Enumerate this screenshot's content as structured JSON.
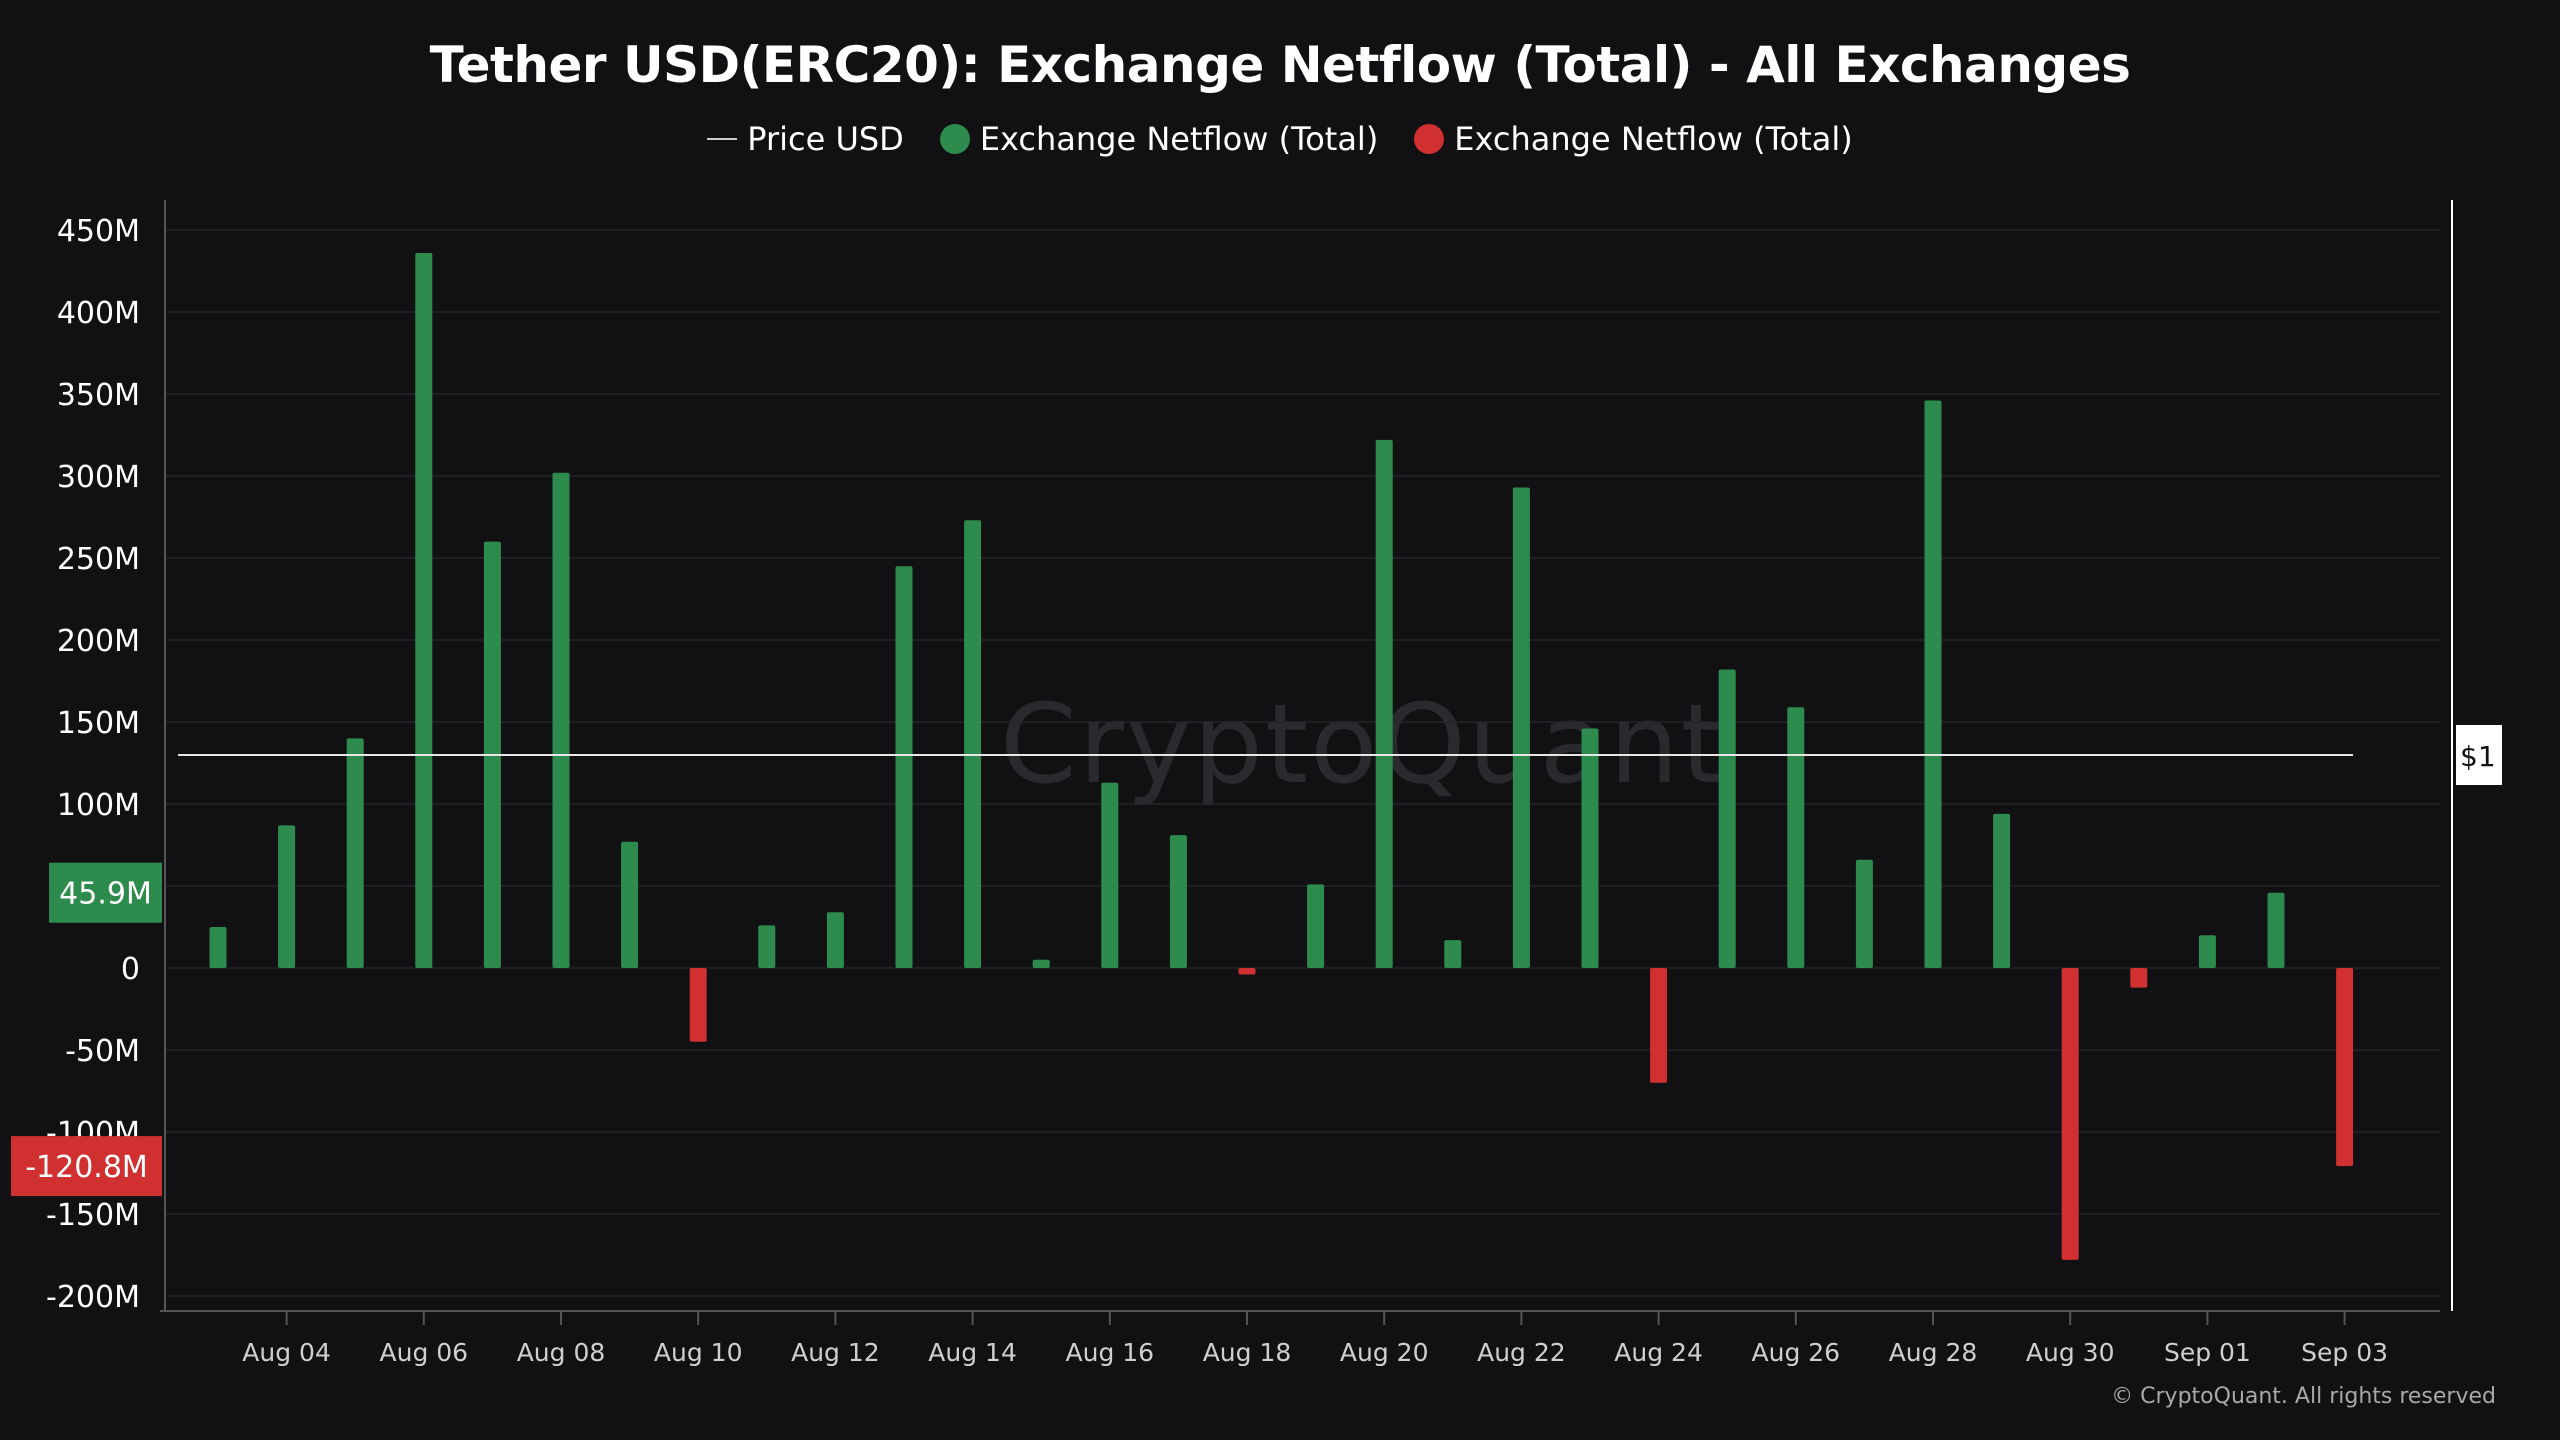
{
  "chart_data": {
    "type": "bar",
    "title": "Tether USD(ERC20): Exchange Netflow (Total) - All Exchanges",
    "legend": [
      {
        "label": "Price USD",
        "symbol": "line",
        "color": "#cccccc"
      },
      {
        "label": "Exchange Netflow (Total)",
        "symbol": "dot",
        "color": "#2e8b4e"
      },
      {
        "label": "Exchange Netflow (Total)",
        "symbol": "dot",
        "color": "#d03030"
      }
    ],
    "legend_placement": "top-center",
    "ylim": [
      -200,
      450
    ],
    "y_unit": "M",
    "y_ticks": [
      "450M",
      "400M",
      "350M",
      "300M",
      "250M",
      "200M",
      "150M",
      "100M",
      "50M",
      "0",
      "-50M",
      "-100M",
      "-150M",
      "-200M"
    ],
    "y_tick_values": [
      450,
      400,
      350,
      300,
      250,
      200,
      150,
      100,
      50,
      0,
      -50,
      -100,
      -150,
      -200
    ],
    "x_ticks": [
      {
        "label": "Aug 04",
        "index": 1
      },
      {
        "label": "Aug 06",
        "index": 3
      },
      {
        "label": "Aug 08",
        "index": 5
      },
      {
        "label": "Aug 10",
        "index": 7
      },
      {
        "label": "Aug 12",
        "index": 9
      },
      {
        "label": "Aug 14",
        "index": 11
      },
      {
        "label": "Aug 16",
        "index": 13
      },
      {
        "label": "Aug 18",
        "index": 15
      },
      {
        "label": "Aug 20",
        "index": 17
      },
      {
        "label": "Aug 22",
        "index": 19
      },
      {
        "label": "Aug 24",
        "index": 21
      },
      {
        "label": "Aug 26",
        "index": 23
      },
      {
        "label": "Aug 28",
        "index": 25
      },
      {
        "label": "Aug 30",
        "index": 27
      },
      {
        "label": "Sep 01",
        "index": 29
      },
      {
        "label": "Sep 03",
        "index": 31
      }
    ],
    "series": [
      {
        "name": "Exchange Netflow (Total)",
        "values": [
          25,
          87,
          140,
          436,
          260,
          302,
          77,
          -45,
          26,
          34,
          245,
          273,
          5,
          113,
          81,
          -4,
          51,
          322,
          17,
          293,
          146,
          -70,
          182,
          159,
          66,
          346,
          94,
          -178,
          -12,
          20,
          45.9,
          -120.8
        ]
      },
      {
        "name": "Price USD",
        "value": 1
      }
    ],
    "grid": true,
    "colors": {
      "positive": "#2e8b4e",
      "negative": "#d03030",
      "grid": "#26262a",
      "axis": "#555555",
      "price_line": "#e6e6e6"
    },
    "last_value_badges": [
      {
        "label": "45.9M",
        "value": 45.9,
        "color": "#2e8b4e"
      },
      {
        "label": "-120.8M",
        "value": -120.8,
        "color": "#d03030"
      }
    ],
    "price_badge": "$1"
  },
  "watermark": "CryptoQuant",
  "copyright": "© CryptoQuant. All rights reserved"
}
